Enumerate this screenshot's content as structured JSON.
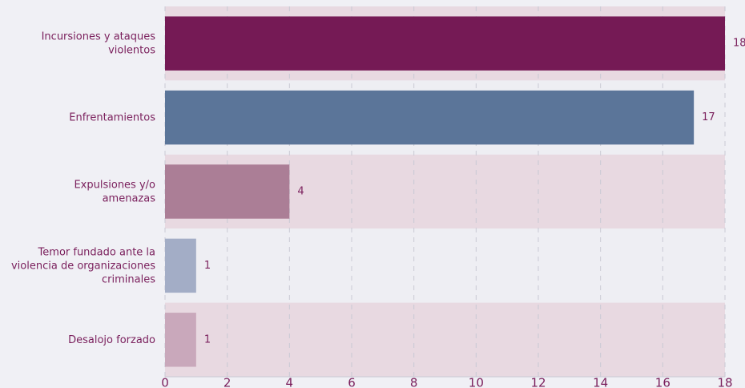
{
  "chart_data": {
    "type": "bar",
    "orientation": "horizontal",
    "categories": [
      "Incursiones y ataques\nviolentos",
      "Enfrentamientos",
      "Expulsiones y/o\namenazas",
      "Temor fundado ante la\nviolencia  de organizaciones\ncriminales",
      "Desalojo forzado"
    ],
    "values": [
      18,
      17,
      4,
      1,
      1
    ],
    "colors": [
      "#751a55",
      "#5b7599",
      "#ab7e96",
      "#a3adc6",
      "#c9a8bb"
    ],
    "xlim": [
      0,
      18
    ],
    "xticks": [
      0,
      2,
      4,
      6,
      8,
      10,
      12,
      14,
      16,
      18
    ],
    "grid": true
  }
}
